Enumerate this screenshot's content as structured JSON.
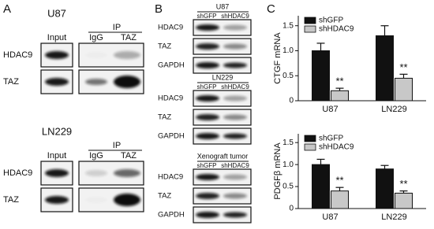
{
  "panel_a": {
    "label": "A",
    "blots": [
      {
        "title": "U87",
        "ip_label": "IP",
        "columns": [
          "Input",
          "IgG",
          "TAZ"
        ],
        "rows": [
          "HDAC9",
          "TAZ"
        ]
      },
      {
        "title": "LN229",
        "ip_label": "IP",
        "columns": [
          "Input",
          "IgG",
          "TAZ"
        ],
        "rows": [
          "HDAC9",
          "TAZ"
        ]
      }
    ]
  },
  "panel_b": {
    "label": "B",
    "blots": [
      {
        "title": "U87",
        "lanes": [
          "shGFP",
          "shHDAC9"
        ],
        "rows": [
          "HDAC9",
          "TAZ",
          "GAPDH"
        ]
      },
      {
        "title": "LN229",
        "lanes": [
          "shGFP",
          "shHDAC9"
        ],
        "rows": [
          "HDAC9",
          "TAZ",
          "GAPDH"
        ]
      },
      {
        "title": "Xenograft tumor",
        "lanes": [
          "shGFP",
          "shHDAC9"
        ],
        "rows": [
          "HDAC9",
          "TAZ",
          "GAPDH"
        ]
      }
    ]
  },
  "panel_c": {
    "label": "C"
  },
  "chart_data": [
    {
      "type": "bar",
      "y_label": "CTGF mRNA",
      "categories": [
        "U87",
        "LN229"
      ],
      "series": [
        {
          "name": "shGFP",
          "color": "#111111",
          "values": [
            1.0,
            1.3
          ],
          "errors": [
            0.15,
            0.2
          ]
        },
        {
          "name": "shHDAC9",
          "color": "#c8c8c8",
          "values": [
            0.2,
            0.45
          ],
          "errors": [
            0.05,
            0.08
          ],
          "annotations": [
            "**",
            "**"
          ]
        }
      ],
      "ylim": [
        0,
        1.7
      ],
      "yticks": [
        0,
        0.5,
        {
          "value": 1,
          "label": "1.0"
        },
        1.5
      ],
      "legend": "upper left"
    },
    {
      "type": "bar",
      "y_label": "PDGFβ mRNA",
      "categories": [
        "U87",
        "LN229"
      ],
      "series": [
        {
          "name": "shGFP",
          "color": "#111111",
          "values": [
            1.0,
            0.9
          ],
          "errors": [
            0.12,
            0.08
          ]
        },
        {
          "name": "shHDAC9",
          "color": "#c8c8c8",
          "values": [
            0.4,
            0.35
          ],
          "errors": [
            0.08,
            0.05
          ],
          "annotations": [
            "**",
            "**"
          ]
        }
      ],
      "ylim": [
        0,
        1.7
      ],
      "yticks": [
        0,
        0.5,
        {
          "value": 1,
          "label": "1.0"
        },
        1.5
      ],
      "legend": "upper left"
    }
  ]
}
